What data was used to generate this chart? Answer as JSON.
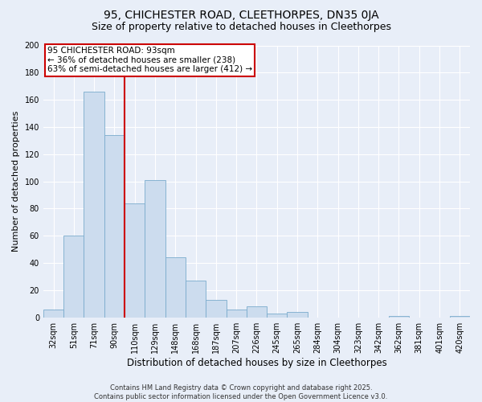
{
  "title": "95, CHICHESTER ROAD, CLEETHORPES, DN35 0JA",
  "subtitle": "Size of property relative to detached houses in Cleethorpes",
  "xlabel": "Distribution of detached houses by size in Cleethorpes",
  "ylabel": "Number of detached properties",
  "bar_labels": [
    "32sqm",
    "51sqm",
    "71sqm",
    "90sqm",
    "110sqm",
    "129sqm",
    "148sqm",
    "168sqm",
    "187sqm",
    "207sqm",
    "226sqm",
    "245sqm",
    "265sqm",
    "284sqm",
    "304sqm",
    "323sqm",
    "342sqm",
    "362sqm",
    "381sqm",
    "401sqm",
    "420sqm"
  ],
  "bar_values": [
    6,
    60,
    166,
    134,
    84,
    101,
    44,
    27,
    13,
    6,
    8,
    3,
    4,
    0,
    0,
    0,
    0,
    1,
    0,
    0,
    1
  ],
  "bar_color": "#ccdcee",
  "bar_edge_color": "#7aabcc",
  "vline_bar_index": 3,
  "vline_color": "#cc0000",
  "ylim": [
    0,
    200
  ],
  "yticks": [
    0,
    20,
    40,
    60,
    80,
    100,
    120,
    140,
    160,
    180,
    200
  ],
  "annotation_title": "95 CHICHESTER ROAD: 93sqm",
  "annotation_line1": "← 36% of detached houses are smaller (238)",
  "annotation_line2": "63% of semi-detached houses are larger (412) →",
  "annotation_box_color": "#ffffff",
  "annotation_box_edge": "#cc0000",
  "footer_line1": "Contains HM Land Registry data © Crown copyright and database right 2025.",
  "footer_line2": "Contains public sector information licensed under the Open Government Licence v3.0.",
  "background_color": "#e8eef8",
  "grid_color": "#ffffff",
  "title_fontsize": 10,
  "subtitle_fontsize": 9,
  "xlabel_fontsize": 8.5,
  "ylabel_fontsize": 8,
  "tick_fontsize": 7,
  "footer_fontsize": 6,
  "annotation_fontsize": 7.5
}
